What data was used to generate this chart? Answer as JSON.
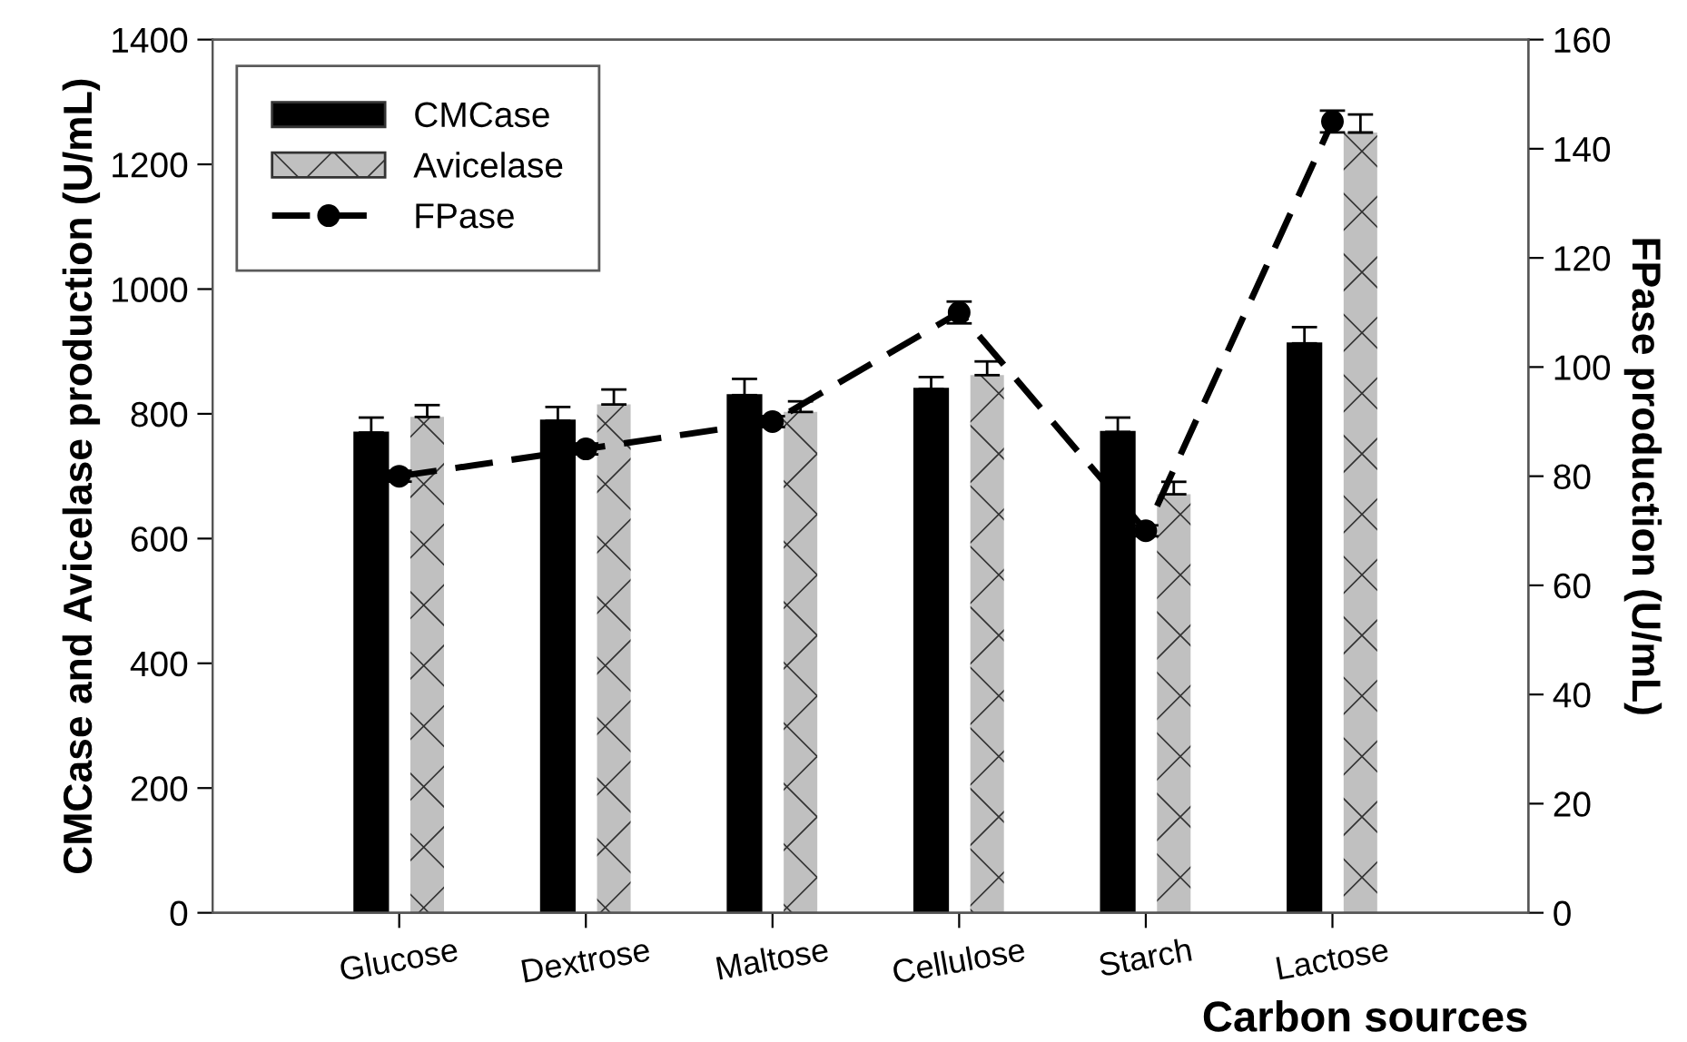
{
  "chart_data": {
    "type": "bar",
    "xlabel": "Carbon sources",
    "ylabel": "CMCase and Avicelase production (U/mL)",
    "y2label": "FPase production (U/mL)",
    "categories": [
      "Glucose",
      "Dextrose",
      "Maltose",
      "Cellulose",
      "Starch",
      "Lactose"
    ],
    "series": [
      {
        "name": "CMCase",
        "color": "#000000",
        "values": [
          770,
          789,
          830,
          840,
          771,
          913
        ],
        "errors": [
          [
            770,
            794
          ],
          [
            789,
            811
          ],
          [
            830,
            856
          ],
          [
            840,
            859
          ],
          [
            771,
            794
          ],
          [
            913,
            939
          ]
        ]
      },
      {
        "name": "Avicelase",
        "color": "#c0c0c0",
        "values": [
          795,
          815,
          803,
          862,
          671,
          1251
        ],
        "errors": [
          [
            795,
            814
          ],
          [
            815,
            839
          ],
          [
            803,
            820
          ],
          [
            862,
            884
          ],
          [
            671,
            691
          ],
          [
            1251,
            1280
          ]
        ]
      },
      {
        "name": "FPase",
        "type": "line",
        "axis": "y2",
        "color": "#000000",
        "values": [
          80,
          85,
          90,
          110,
          70,
          145
        ],
        "errors": [
          1,
          1,
          1,
          2,
          1,
          2
        ]
      }
    ],
    "ylim": [
      0,
      1400
    ],
    "yticks": [
      0,
      200,
      400,
      600,
      800,
      1000,
      1200,
      1400
    ],
    "y2lim": [
      0,
      160
    ],
    "y2ticks": [
      0,
      20,
      40,
      60,
      80,
      100,
      120,
      140,
      160
    ],
    "legend": "top left",
    "grid": false,
    "marker": "circle",
    "line_style": "dashed"
  }
}
